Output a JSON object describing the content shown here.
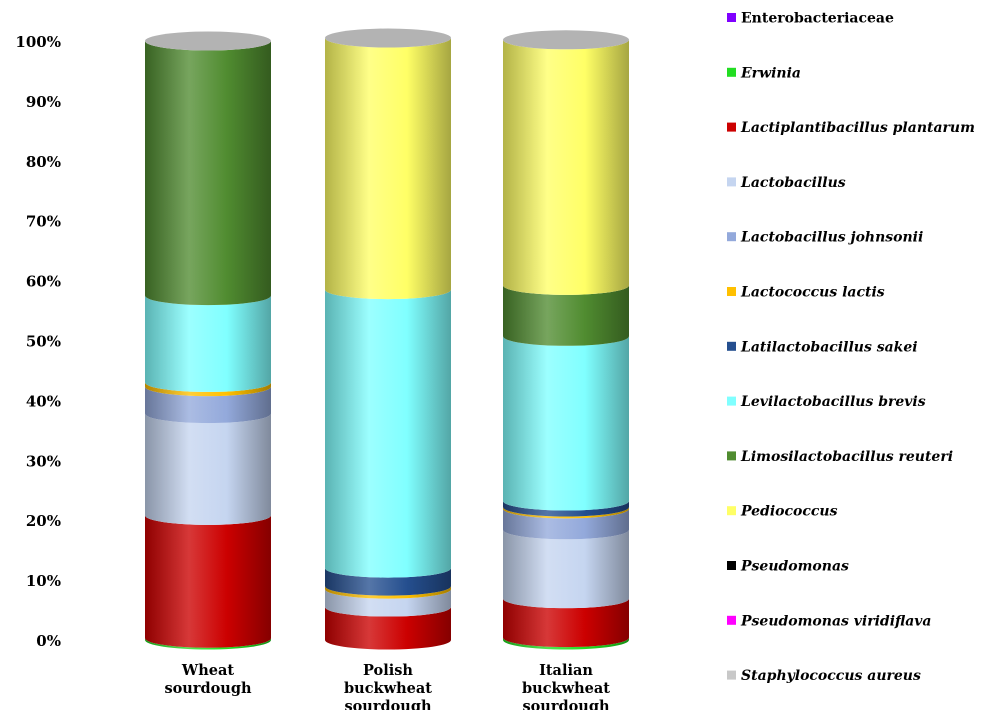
{
  "chart_data": {
    "type": "bar",
    "stacked": true,
    "style": "3d-cylinder",
    "ylim": [
      0,
      100
    ],
    "yticks": [
      "0%",
      "10%",
      "20%",
      "30%",
      "40%",
      "50%",
      "60%",
      "70%",
      "80%",
      "90%",
      "100%"
    ],
    "legend_position": "right",
    "categories": [
      [
        "Wheat",
        "sourdough"
      ],
      [
        "Polish",
        "buckwheat",
        "sourdough"
      ],
      [
        "Italian",
        "buckwheat",
        "sourdough"
      ]
    ],
    "series": [
      {
        "name": "Enterobacteriaceae",
        "italic": false,
        "color": "#7f00ff",
        "values": [
          0,
          0,
          0
        ]
      },
      {
        "name": "Erwinia",
        "italic": true,
        "color": "#22dd22",
        "values": [
          0.3,
          0,
          0.4
        ]
      },
      {
        "name": "Lactiplantibacillus plantarum",
        "italic": true,
        "color": "#cc0000",
        "values": [
          20.5,
          5.5,
          6.5
        ]
      },
      {
        "name": "Lactobacillus",
        "italic": true,
        "color": "#c5d5f0",
        "values": [
          17,
          3,
          11.5
        ]
      },
      {
        "name": "Lactobacillus johnsonii",
        "italic": true,
        "color": "#93a9db",
        "values": [
          4.5,
          0,
          3.5
        ]
      },
      {
        "name": "Lactococcus lactis",
        "italic": true,
        "color": "#ffc000",
        "values": [
          0.7,
          0.5,
          0.3
        ]
      },
      {
        "name": "Latilactobacillus sakei",
        "italic": true,
        "color": "#254f8f",
        "values": [
          0,
          3,
          1
        ]
      },
      {
        "name": "Levilactobacillus brevis",
        "italic": true,
        "color": "#80ffff",
        "values": [
          14.5,
          46.5,
          27.5
        ]
      },
      {
        "name": "Limosilactobacillus reuteri",
        "italic": true,
        "color": "#508c30",
        "values": [
          42.5,
          0,
          8.5
        ]
      },
      {
        "name": "Pediococcus",
        "italic": true,
        "color": "#ffff66",
        "values": [
          0,
          42,
          41
        ]
      },
      {
        "name": "Pseudomonas",
        "italic": true,
        "color": "#000000",
        "values": [
          0,
          0,
          0
        ]
      },
      {
        "name": "Pseudomonas viridiflava",
        "italic": true,
        "color": "#ff00ff",
        "values": [
          0,
          0,
          0
        ]
      },
      {
        "name": "Staphylococcus aureus",
        "italic": true,
        "color": "#c8c8c8",
        "values": [
          0,
          0,
          0
        ]
      }
    ]
  }
}
